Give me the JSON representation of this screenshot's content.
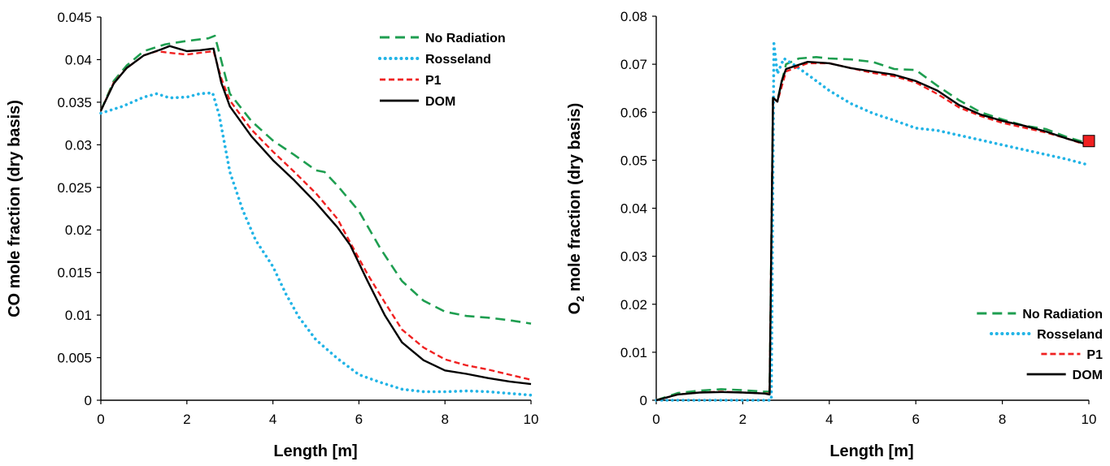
{
  "colors": {
    "no_radiation": "#1e9e50",
    "rosseland": "#22b4e6",
    "p1": "#f02020",
    "dom": "#000000",
    "axis": "#000000"
  },
  "chart_data": [
    {
      "type": "line",
      "title": "",
      "xlabel": "Length [m]",
      "ylabel": "CO mole fraction (dry basis)",
      "xlim": [
        0,
        10
      ],
      "ylim": [
        0,
        0.045
      ],
      "xticks": [
        "0",
        "2",
        "4",
        "6",
        "8",
        "10"
      ],
      "yticks": [
        "0",
        "0.005",
        "0.01",
        "0.015",
        "0.02",
        "0.025",
        "0.03",
        "0.035",
        "0.04",
        "0.045"
      ],
      "grid": false,
      "legend": {
        "placement": "top-right",
        "entries": [
          "No Radiation",
          "Rosseland",
          "P1",
          "DOM"
        ]
      },
      "series": [
        {
          "name": "No Radiation",
          "style": "dashed-long",
          "color": "no_radiation",
          "x": [
            0,
            0.3,
            0.6,
            1.0,
            1.5,
            2.0,
            2.5,
            2.65,
            3.0,
            3.5,
            4.0,
            4.5,
            5.0,
            5.2,
            5.5,
            6.0,
            6.5,
            7.0,
            7.5,
            8.0,
            8.5,
            9.0,
            9.5,
            10.0
          ],
          "y": [
            0.034,
            0.0375,
            0.0393,
            0.041,
            0.0418,
            0.0422,
            0.0425,
            0.0428,
            0.036,
            0.0328,
            0.0305,
            0.0288,
            0.027,
            0.0268,
            0.0252,
            0.0222,
            0.0178,
            0.014,
            0.0117,
            0.0104,
            0.0099,
            0.0097,
            0.0094,
            0.009
          ]
        },
        {
          "name": "Rosseland",
          "style": "dotted",
          "color": "rosseland",
          "x": [
            0,
            0.5,
            1.0,
            1.3,
            1.6,
            2.0,
            2.3,
            2.6,
            2.75,
            3.0,
            3.3,
            3.6,
            4.0,
            4.3,
            4.6,
            5.0,
            5.5,
            6.0,
            6.5,
            7.0,
            7.5,
            8.0,
            8.5,
            9.0,
            9.5,
            10.0
          ],
          "y": [
            0.0337,
            0.0345,
            0.0356,
            0.036,
            0.0355,
            0.0356,
            0.036,
            0.0361,
            0.0335,
            0.0268,
            0.0223,
            0.0188,
            0.0157,
            0.0125,
            0.0098,
            0.0071,
            0.0049,
            0.003,
            0.0021,
            0.0013,
            0.001,
            0.001,
            0.0011,
            0.001,
            0.0008,
            0.0006
          ]
        },
        {
          "name": "P1",
          "style": "dashed",
          "color": "p1",
          "x": [
            0,
            0.3,
            0.6,
            1.0,
            1.3,
            1.6,
            2.0,
            2.3,
            2.62,
            2.8,
            3.0,
            3.5,
            4.0,
            4.5,
            5.0,
            5.5,
            5.8,
            6.2,
            6.6,
            7.0,
            7.5,
            8.0,
            8.5,
            9.0,
            9.5,
            10.0
          ],
          "y": [
            0.034,
            0.0373,
            0.039,
            0.0405,
            0.041,
            0.0408,
            0.0406,
            0.0408,
            0.041,
            0.0378,
            0.0352,
            0.0318,
            0.0292,
            0.0268,
            0.0243,
            0.0213,
            0.0185,
            0.0148,
            0.0115,
            0.0083,
            0.0062,
            0.0048,
            0.0041,
            0.0036,
            0.003,
            0.0024
          ]
        },
        {
          "name": "DOM",
          "style": "solid",
          "color": "dom",
          "x": [
            0,
            0.3,
            0.6,
            1.0,
            1.4,
            1.6,
            2.0,
            2.3,
            2.62,
            2.8,
            3.0,
            3.5,
            4.0,
            4.5,
            5.0,
            5.5,
            5.8,
            6.2,
            6.6,
            7.0,
            7.5,
            8.0,
            8.5,
            9.0,
            9.5,
            10.0
          ],
          "y": [
            0.034,
            0.0372,
            0.039,
            0.0405,
            0.0412,
            0.0416,
            0.041,
            0.0411,
            0.0413,
            0.0373,
            0.0345,
            0.031,
            0.0282,
            0.0258,
            0.0232,
            0.0203,
            0.0182,
            0.014,
            0.01,
            0.0068,
            0.0047,
            0.0035,
            0.0031,
            0.0026,
            0.0022,
            0.0019
          ]
        }
      ]
    },
    {
      "type": "line",
      "title": "",
      "xlabel": "Length [m]",
      "ylabel": "O₂ mole fraction (dry basis)",
      "ylabel_parts": [
        "O",
        "2",
        " mole fraction (dry basis)"
      ],
      "xlim": [
        0,
        10
      ],
      "ylim": [
        0,
        0.08
      ],
      "xticks": [
        "0",
        "2",
        "4",
        "6",
        "8",
        "10"
      ],
      "yticks": [
        "0",
        "0.01",
        "0.02",
        "0.03",
        "0.04",
        "0.05",
        "0.06",
        "0.07",
        "0.08"
      ],
      "grid": false,
      "legend": {
        "placement": "bottom-right",
        "entries": [
          "No Radiation",
          "Rosseland",
          "P1",
          "DOM"
        ]
      },
      "marker": {
        "x": 10.0,
        "y": 0.054,
        "shape": "square",
        "color": "p1"
      },
      "series": [
        {
          "name": "No Radiation",
          "style": "dashed-long",
          "color": "no_radiation",
          "x": [
            0,
            0.5,
            1.0,
            1.5,
            2.0,
            2.5,
            2.62,
            2.7,
            2.8,
            3.0,
            3.3,
            3.7,
            4.0,
            4.5,
            5.0,
            5.5,
            6.0,
            6.5,
            7.0,
            7.5,
            8.0,
            8.5,
            9.0,
            9.5,
            10.0
          ],
          "y": [
            0,
            0.0015,
            0.002,
            0.0023,
            0.0021,
            0.0018,
            0.0018,
            0.063,
            0.0625,
            0.07,
            0.0712,
            0.0715,
            0.0712,
            0.071,
            0.0705,
            0.069,
            0.0688,
            0.0655,
            0.0625,
            0.06,
            0.0585,
            0.0572,
            0.0565,
            0.0548,
            0.0535
          ]
        },
        {
          "name": "Rosseland",
          "style": "dotted",
          "color": "rosseland",
          "x": [
            0,
            0.5,
            1.0,
            1.5,
            2.0,
            2.5,
            2.66,
            2.72,
            2.8,
            2.95,
            3.2,
            3.6,
            4.0,
            4.5,
            5.0,
            5.5,
            6.0,
            6.5,
            7.0,
            7.5,
            8.0,
            8.5,
            9.0,
            9.5,
            10.0
          ],
          "y": [
            0,
            0,
            0,
            0,
            0,
            0,
            0,
            0.0743,
            0.068,
            0.0712,
            0.0698,
            0.0672,
            0.0645,
            0.0618,
            0.0598,
            0.0583,
            0.0567,
            0.0562,
            0.0552,
            0.0542,
            0.0532,
            0.0522,
            0.0512,
            0.0502,
            0.049
          ]
        },
        {
          "name": "P1",
          "style": "dashed",
          "color": "p1",
          "x": [
            0,
            0.5,
            1.0,
            1.5,
            2.0,
            2.5,
            2.62,
            2.7,
            2.8,
            3.0,
            3.5,
            4.0,
            4.5,
            5.0,
            5.5,
            6.0,
            6.5,
            7.0,
            7.5,
            8.0,
            8.5,
            9.0,
            9.5,
            10.0
          ],
          "y": [
            0,
            0.0012,
            0.0016,
            0.0018,
            0.0016,
            0.0014,
            0.0014,
            0.063,
            0.0622,
            0.0685,
            0.0702,
            0.0702,
            0.0692,
            0.0682,
            0.0675,
            0.0662,
            0.0638,
            0.061,
            0.0592,
            0.0578,
            0.0568,
            0.0558,
            0.0545,
            0.053
          ]
        },
        {
          "name": "DOM",
          "style": "solid",
          "color": "dom",
          "x": [
            0,
            0.5,
            1.0,
            1.5,
            2.0,
            2.5,
            2.62,
            2.7,
            2.8,
            2.9,
            3.0,
            3.5,
            4.0,
            4.5,
            5.0,
            5.5,
            6.0,
            6.5,
            7.0,
            7.5,
            8.0,
            8.5,
            9.0,
            9.5,
            10.0
          ],
          "y": [
            0,
            0.0012,
            0.0016,
            0.0017,
            0.0016,
            0.0014,
            0.0012,
            0.063,
            0.0622,
            0.0665,
            0.069,
            0.0705,
            0.0702,
            0.0692,
            0.0685,
            0.0678,
            0.0665,
            0.0645,
            0.0615,
            0.0595,
            0.0582,
            0.0572,
            0.056,
            0.0545,
            0.0532
          ]
        }
      ]
    }
  ]
}
